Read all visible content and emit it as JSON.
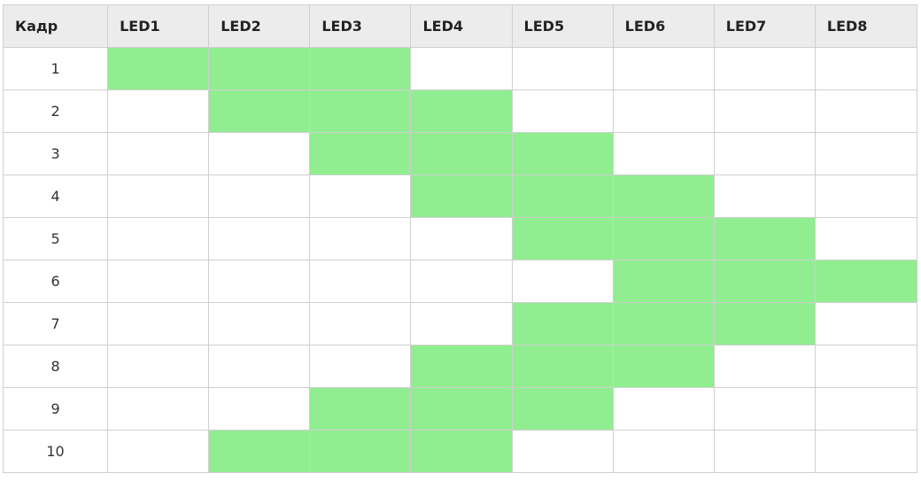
{
  "table": {
    "headers": [
      "Кадр",
      "LED1",
      "LED2",
      "LED3",
      "LED4",
      "LED5",
      "LED6",
      "LED7",
      "LED8"
    ],
    "on_color": "#90ee90",
    "rows": [
      {
        "frame": "1",
        "leds": [
          1,
          1,
          1,
          0,
          0,
          0,
          0,
          0
        ]
      },
      {
        "frame": "2",
        "leds": [
          0,
          1,
          1,
          1,
          0,
          0,
          0,
          0
        ]
      },
      {
        "frame": "3",
        "leds": [
          0,
          0,
          1,
          1,
          1,
          0,
          0,
          0
        ]
      },
      {
        "frame": "4",
        "leds": [
          0,
          0,
          0,
          1,
          1,
          1,
          0,
          0
        ]
      },
      {
        "frame": "5",
        "leds": [
          0,
          0,
          0,
          0,
          1,
          1,
          1,
          0
        ]
      },
      {
        "frame": "6",
        "leds": [
          0,
          0,
          0,
          0,
          0,
          1,
          1,
          1
        ]
      },
      {
        "frame": "7",
        "leds": [
          0,
          0,
          0,
          0,
          1,
          1,
          1,
          0
        ]
      },
      {
        "frame": "8",
        "leds": [
          0,
          0,
          0,
          1,
          1,
          1,
          0,
          0
        ]
      },
      {
        "frame": "9",
        "leds": [
          0,
          0,
          1,
          1,
          1,
          0,
          0,
          0
        ]
      },
      {
        "frame": "10",
        "leds": [
          0,
          1,
          1,
          1,
          0,
          0,
          0,
          0
        ]
      }
    ]
  }
}
